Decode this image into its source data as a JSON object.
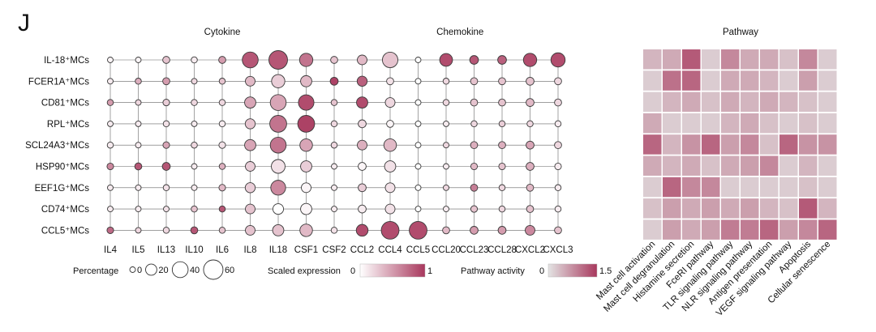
{
  "panel_label": "J",
  "colors": {
    "low": "#ffffff",
    "high": "#a8385d",
    "heat_low": "#e3e3e3",
    "heat_high": "#a8385d",
    "stroke": "#555555"
  },
  "chart_data": {
    "type": "dotplot+heatmap",
    "rows": [
      "IL-18⁺MCs",
      "FCER1A⁺MCs",
      "CD81⁺MCs",
      "RPL⁺MCs",
      "SCL24A3⁺MCs",
      "HSP90⁺MCs",
      "EEF1G⁺MCs",
      "CD74⁺MCs",
      "CCL5⁺MCs"
    ],
    "groups": [
      {
        "name": "Cytokine",
        "genes": [
          "IL4",
          "IL5",
          "IL13",
          "IL10",
          "IL6",
          "IL8",
          "IL18",
          "CSF1",
          "CSF2"
        ]
      },
      {
        "name": "Chemokine",
        "genes": [
          "CCL2",
          "CCL4",
          "CCL5",
          "CCL20",
          "CCL23",
          "CCL28",
          "CXCL2",
          "CXCL3"
        ]
      }
    ],
    "genes": [
      "IL4",
      "IL5",
      "IL13",
      "IL10",
      "IL6",
      "IL8",
      "IL18",
      "CSF1",
      "CSF2",
      "CCL2",
      "CCL4",
      "CCL5",
      "CCL20",
      "CCL23",
      "CCL28",
      "CXCL2",
      "CXCL3"
    ],
    "percentage": [
      [
        5,
        5,
        8,
        6,
        8,
        40,
        55,
        28,
        8,
        15,
        38,
        5,
        26,
        12,
        12,
        28,
        32
      ],
      [
        5,
        6,
        8,
        5,
        6,
        15,
        28,
        20,
        10,
        16,
        8,
        5,
        6,
        8,
        8,
        10,
        8
      ],
      [
        6,
        5,
        7,
        6,
        6,
        20,
        40,
        38,
        6,
        20,
        15,
        5,
        6,
        8,
        8,
        10,
        8
      ],
      [
        5,
        5,
        6,
        5,
        6,
        16,
        45,
        45,
        6,
        10,
        8,
        5,
        5,
        6,
        6,
        6,
        6
      ],
      [
        6,
        5,
        7,
        6,
        7,
        20,
        40,
        25,
        6,
        15,
        25,
        5,
        5,
        8,
        8,
        10,
        8
      ],
      [
        7,
        8,
        10,
        5,
        6,
        15,
        30,
        20,
        5,
        10,
        20,
        5,
        5,
        7,
        7,
        10,
        7
      ],
      [
        5,
        5,
        6,
        5,
        7,
        16,
        35,
        15,
        5,
        10,
        15,
        5,
        5,
        8,
        6,
        8,
        6
      ],
      [
        5,
        5,
        5,
        6,
        6,
        15,
        18,
        20,
        5,
        10,
        15,
        5,
        5,
        7,
        6,
        8,
        6
      ],
      [
        7,
        5,
        6,
        8,
        6,
        15,
        20,
        25,
        6,
        22,
        50,
        50,
        8,
        10,
        10,
        15,
        8
      ]
    ],
    "scaled_expression": [
      [
        0.05,
        0.05,
        0.3,
        0.1,
        0.5,
        0.85,
        0.85,
        0.7,
        0.3,
        0.35,
        0.3,
        0.0,
        0.9,
        0.85,
        0.8,
        0.9,
        0.9
      ],
      [
        0.1,
        0.4,
        0.5,
        0.2,
        0.3,
        0.35,
        0.25,
        0.35,
        0.95,
        0.8,
        0.15,
        0.0,
        0.2,
        0.3,
        0.3,
        0.3,
        0.2
      ],
      [
        0.5,
        0.2,
        0.25,
        0.2,
        0.2,
        0.45,
        0.45,
        0.9,
        0.3,
        0.9,
        0.2,
        0.0,
        0.2,
        0.3,
        0.3,
        0.35,
        0.2
      ],
      [
        0.1,
        0.1,
        0.15,
        0.1,
        0.1,
        0.3,
        0.7,
        0.95,
        0.2,
        0.2,
        0.05,
        0.0,
        0.1,
        0.2,
        0.25,
        0.2,
        0.1
      ],
      [
        0.1,
        0.1,
        0.45,
        0.2,
        0.15,
        0.45,
        0.7,
        0.45,
        0.2,
        0.4,
        0.35,
        0.0,
        0.2,
        0.4,
        0.4,
        0.45,
        0.2
      ],
      [
        0.6,
        0.85,
        0.85,
        0.1,
        0.4,
        0.25,
        0.15,
        0.25,
        0.1,
        0.05,
        0.15,
        0.0,
        0.1,
        0.35,
        0.3,
        0.4,
        0.1
      ],
      [
        0.1,
        0.1,
        0.15,
        0.1,
        0.35,
        0.25,
        0.6,
        0.05,
        0.1,
        0.25,
        0.15,
        0.0,
        0.2,
        0.65,
        0.2,
        0.35,
        0.1
      ],
      [
        0.1,
        0.1,
        0.15,
        0.3,
        0.85,
        0.3,
        0.0,
        0.05,
        0.1,
        0.1,
        0.15,
        0.0,
        0.1,
        0.3,
        0.2,
        0.3,
        0.1
      ],
      [
        0.75,
        0.2,
        0.2,
        0.85,
        0.3,
        0.3,
        0.3,
        0.35,
        0.15,
        0.9,
        0.9,
        0.9,
        0.35,
        0.5,
        0.5,
        0.6,
        0.3
      ]
    ],
    "pathways": [
      "Mast cell activation",
      "Mast cell degranulation",
      "Histamine secretion",
      "FceRI pathway",
      "TLR signaling pathway",
      "NLR signaling pathway",
      "Antigen presentation",
      "VEGF signaling pathway",
      "Apoptosis",
      "Cellular senescence"
    ],
    "pathway_activity": [
      [
        0.4,
        0.5,
        1.2,
        0.2,
        0.8,
        0.5,
        0.5,
        0.3,
        0.8,
        0.2
      ],
      [
        0.2,
        1.0,
        1.1,
        0.2,
        0.5,
        0.5,
        0.4,
        0.2,
        0.6,
        0.2
      ],
      [
        0.2,
        0.4,
        0.5,
        0.3,
        0.5,
        0.4,
        0.5,
        0.4,
        0.3,
        0.2
      ],
      [
        0.5,
        0.2,
        0.2,
        0.2,
        0.4,
        0.5,
        0.3,
        0.2,
        0.3,
        0.2
      ],
      [
        1.1,
        0.4,
        0.7,
        1.1,
        0.6,
        0.8,
        0.3,
        1.1,
        0.7,
        0.7
      ],
      [
        0.5,
        0.4,
        0.5,
        0.3,
        0.5,
        0.6,
        0.8,
        0.2,
        0.4,
        0.2
      ],
      [
        0.2,
        1.1,
        0.8,
        0.8,
        0.2,
        0.2,
        0.2,
        0.2,
        0.3,
        0.2
      ],
      [
        0.3,
        0.6,
        0.5,
        0.6,
        0.5,
        0.6,
        0.4,
        0.3,
        1.2,
        0.4
      ],
      [
        0.2,
        0.6,
        0.5,
        0.6,
        0.9,
        0.9,
        1.1,
        0.6,
        0.8,
        1.1
      ]
    ],
    "pathway_title": "Pathway",
    "legend": {
      "percentage_label": "Percentage",
      "percentage_ticks": [
        0,
        20,
        40,
        60
      ],
      "expression_label": "Scaled expression",
      "expression_min": "0",
      "expression_max": "1",
      "activity_label": "Pathway activity",
      "activity_min": "0",
      "activity_max": "1.5"
    }
  }
}
